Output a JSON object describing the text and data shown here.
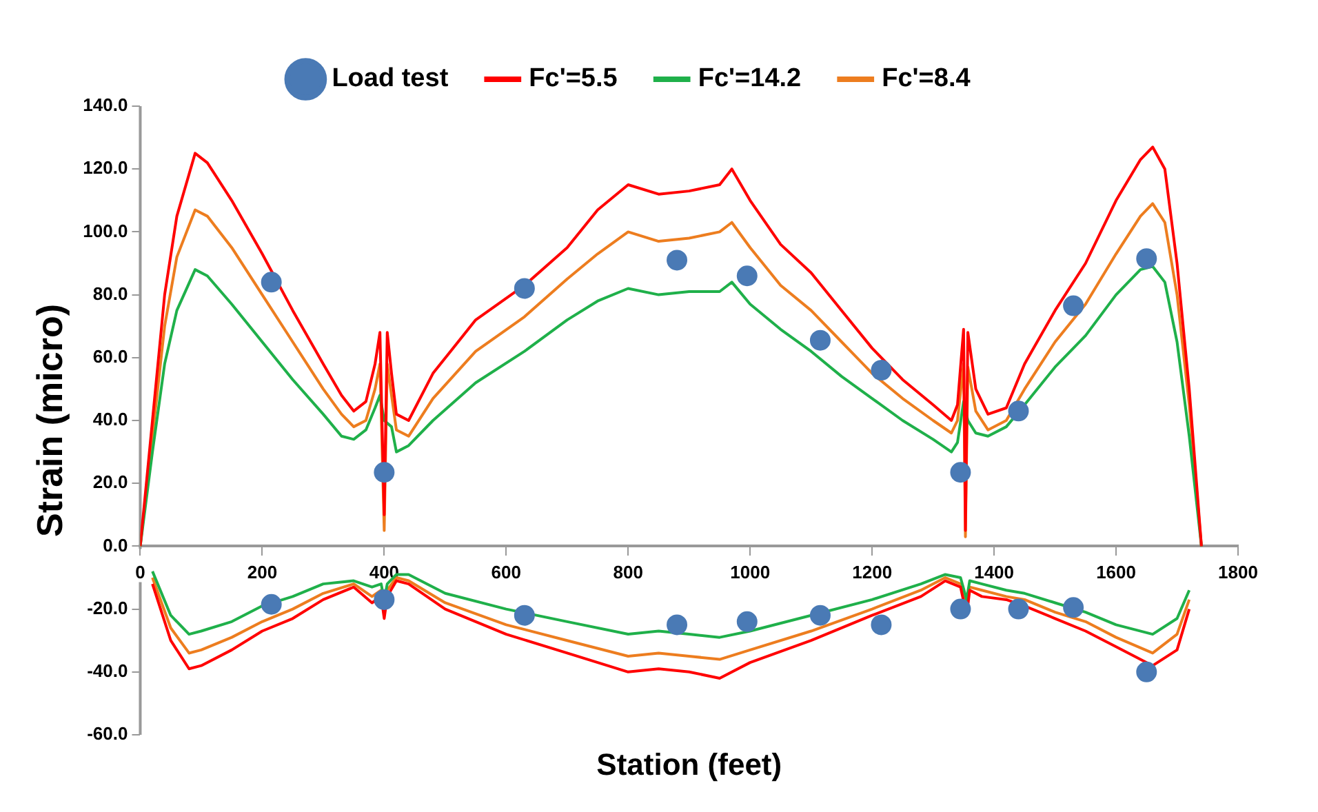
{
  "chart_data": {
    "type": "line",
    "xlabel": "Station (feet)",
    "ylabel": "Strain (micro)",
    "xlim": [
      0,
      1800
    ],
    "xticks": [
      0,
      200,
      400,
      600,
      800,
      1000,
      1200,
      1400,
      1600,
      1800
    ],
    "ylim": [
      -60,
      140
    ],
    "yticks": [
      {
        "value": -60,
        "label": "-60.0"
      },
      {
        "value": -40,
        "label": "-40.0"
      },
      {
        "value": -20,
        "label": "-20.0"
      },
      {
        "value": 0,
        "label": "0.0"
      },
      {
        "value": 20,
        "label": "20.0"
      },
      {
        "value": 40,
        "label": "40.0"
      },
      {
        "value": 60,
        "label": "60.0"
      },
      {
        "value": 80,
        "label": "80.0"
      },
      {
        "value": 100,
        "label": "100.0"
      },
      {
        "value": 120,
        "label": "120.0"
      },
      {
        "value": 140,
        "label": "140.0"
      }
    ],
    "grid": false,
    "legend": "top",
    "series": [
      {
        "name": "Load test",
        "type": "scatter",
        "marker": "circle",
        "color": "#4a7ab5",
        "x": [
          215,
          400,
          630,
          880,
          995,
          1115,
          1215,
          1345,
          1440,
          1530,
          1650,
          215,
          400,
          630,
          880,
          995,
          1115,
          1215,
          1345,
          1440,
          1530,
          1650
        ],
        "values": [
          84,
          23.5,
          82,
          91,
          86,
          65.5,
          56,
          23.5,
          43,
          76.5,
          91.5,
          -18.5,
          -17,
          -22,
          -25,
          -24,
          -22,
          -25,
          -20,
          -20,
          -19.5,
          -40
        ]
      },
      {
        "name": "Fc'=5.5",
        "type": "line",
        "color": "#ff0000",
        "x": [
          0,
          20,
          40,
          60,
          90,
          110,
          150,
          200,
          250,
          300,
          330,
          350,
          370,
          385,
          393,
          400,
          405,
          412,
          420,
          440,
          480,
          550,
          630,
          700,
          750,
          800,
          850,
          900,
          950,
          970,
          1000,
          1050,
          1100,
          1150,
          1200,
          1250,
          1300,
          1330,
          1340,
          1350,
          1353,
          1357,
          1370,
          1390,
          1420,
          1450,
          1500,
          1550,
          1600,
          1640,
          1660,
          1680,
          1700,
          1720,
          1740
        ],
        "values": [
          0,
          40,
          80,
          105,
          125,
          122,
          110,
          93,
          75,
          58,
          48,
          43,
          46,
          58,
          68,
          10,
          68,
          55,
          42,
          40,
          55,
          72,
          83,
          95,
          107,
          115,
          112,
          113,
          115,
          120,
          110,
          96,
          87,
          75,
          63,
          53,
          45,
          40,
          45,
          69,
          5,
          68,
          50,
          42,
          44,
          58,
          75,
          90,
          110,
          123,
          127,
          120,
          90,
          50,
          0
        ]
      },
      {
        "name": "Fc'=14.2",
        "type": "line",
        "color": "#1fb04a",
        "x": [
          0,
          20,
          40,
          60,
          90,
          110,
          150,
          200,
          250,
          300,
          330,
          350,
          370,
          385,
          393,
          400,
          412,
          420,
          440,
          480,
          550,
          630,
          700,
          750,
          800,
          850,
          900,
          950,
          970,
          1000,
          1050,
          1100,
          1150,
          1200,
          1250,
          1300,
          1330,
          1340,
          1350,
          1357,
          1370,
          1390,
          1420,
          1450,
          1500,
          1550,
          1600,
          1640,
          1660,
          1680,
          1700,
          1720,
          1740
        ],
        "values": [
          0,
          30,
          58,
          75,
          88,
          86,
          77,
          65,
          53,
          42,
          35,
          34,
          37,
          44,
          48,
          40,
          38,
          30,
          32,
          40,
          52,
          62,
          72,
          78,
          82,
          80,
          81,
          81,
          84,
          77,
          69,
          62,
          54,
          47,
          40,
          34,
          30,
          33,
          46,
          40,
          36,
          35,
          38,
          45,
          57,
          67,
          80,
          88,
          89,
          84,
          65,
          35,
          0
        ]
      },
      {
        "name": "Fc'=8.4",
        "type": "line",
        "color": "#ed7d1f",
        "x": [
          0,
          20,
          40,
          60,
          90,
          110,
          150,
          200,
          250,
          300,
          330,
          350,
          370,
          385,
          393,
          400,
          405,
          412,
          420,
          440,
          480,
          550,
          630,
          700,
          750,
          800,
          850,
          900,
          950,
          970,
          1000,
          1050,
          1100,
          1150,
          1200,
          1250,
          1300,
          1330,
          1340,
          1350,
          1353,
          1357,
          1370,
          1390,
          1420,
          1450,
          1500,
          1550,
          1600,
          1640,
          1660,
          1680,
          1700,
          1720,
          1740
        ],
        "values": [
          0,
          35,
          70,
          92,
          107,
          105,
          95,
          80,
          65,
          50,
          42,
          38,
          40,
          50,
          58,
          5,
          58,
          48,
          37,
          35,
          47,
          62,
          73,
          85,
          93,
          100,
          97,
          98,
          100,
          103,
          95,
          83,
          75,
          65,
          55,
          47,
          40,
          36,
          40,
          58,
          3,
          57,
          43,
          37,
          40,
          50,
          65,
          77,
          93,
          105,
          109,
          103,
          80,
          45,
          0
        ]
      },
      {
        "type": "line",
        "color": "#ff0000",
        "x": [
          20,
          50,
          80,
          100,
          150,
          200,
          250,
          300,
          350,
          380,
          395,
          400,
          405,
          420,
          440,
          500,
          600,
          700,
          800,
          850,
          900,
          950,
          1000,
          1100,
          1200,
          1280,
          1320,
          1345,
          1355,
          1360,
          1380,
          1420,
          1450,
          1500,
          1550,
          1600,
          1660,
          1700,
          1720
        ],
        "values": [
          -12,
          -30,
          -39,
          -38,
          -33,
          -27,
          -23,
          -17,
          -13,
          -18,
          -16,
          -23,
          -16,
          -11,
          -12,
          -20,
          -28,
          -34,
          -40,
          -39,
          -40,
          -42,
          -37,
          -30,
          -22,
          -16,
          -11,
          -13,
          -22,
          -14,
          -16,
          -17,
          -19,
          -23,
          -27,
          -32,
          -38,
          -33,
          -20
        ]
      },
      {
        "type": "line",
        "color": "#1fb04a",
        "x": [
          20,
          50,
          80,
          100,
          150,
          200,
          250,
          300,
          350,
          380,
          395,
          400,
          405,
          420,
          440,
          500,
          600,
          700,
          800,
          850,
          900,
          950,
          1000,
          1100,
          1200,
          1280,
          1320,
          1345,
          1355,
          1360,
          1380,
          1420,
          1450,
          1500,
          1550,
          1600,
          1660,
          1700,
          1720
        ],
        "values": [
          -8,
          -22,
          -28,
          -27,
          -24,
          -19,
          -16,
          -12,
          -11,
          -13,
          -12,
          -17,
          -12,
          -9,
          -9,
          -15,
          -20,
          -24,
          -28,
          -27,
          -28,
          -29,
          -27,
          -22,
          -17,
          -12,
          -9,
          -10,
          -17,
          -11,
          -12,
          -14,
          -15,
          -18,
          -21,
          -25,
          -28,
          -23,
          -14
        ]
      },
      {
        "type": "line",
        "color": "#ed7d1f",
        "x": [
          20,
          50,
          80,
          100,
          150,
          200,
          250,
          300,
          350,
          380,
          395,
          400,
          405,
          420,
          440,
          500,
          600,
          700,
          800,
          850,
          900,
          950,
          1000,
          1100,
          1200,
          1280,
          1320,
          1345,
          1355,
          1360,
          1380,
          1420,
          1450,
          1500,
          1550,
          1600,
          1660,
          1700,
          1720
        ],
        "values": [
          -10,
          -26,
          -34,
          -33,
          -29,
          -24,
          -20,
          -15,
          -12,
          -16,
          -14,
          -20,
          -14,
          -10,
          -11,
          -18,
          -25,
          -30,
          -35,
          -34,
          -35,
          -36,
          -33,
          -27,
          -20,
          -14,
          -10,
          -12,
          -20,
          -13,
          -14,
          -16,
          -17,
          -21,
          -24,
          -29,
          -34,
          -28,
          -17
        ]
      }
    ]
  }
}
